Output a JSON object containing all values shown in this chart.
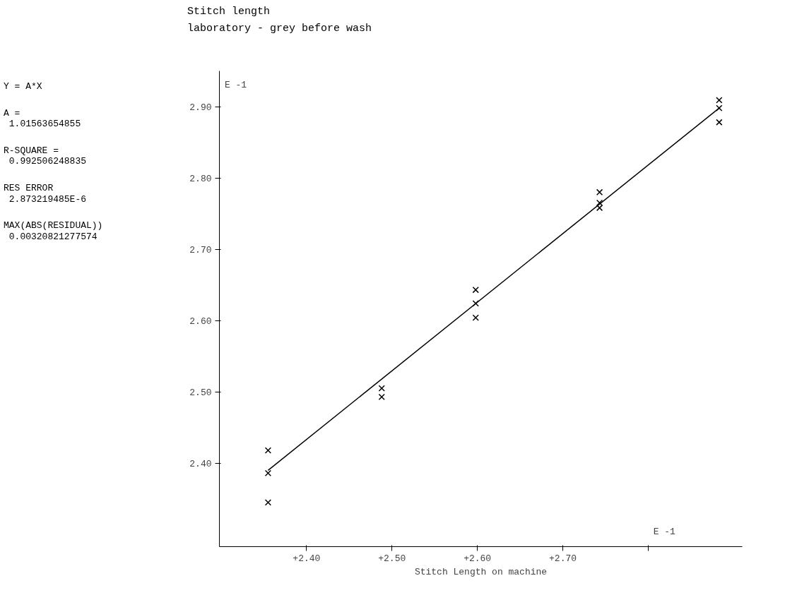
{
  "chart_data": {
    "type": "scatter",
    "title": "Stitch length",
    "subtitle": "laboratory - grey before wash",
    "xlabel": "Stitch Length on machine",
    "annotations": [
      "Y = A*X",
      "A =\n 1.01563654855",
      "R-SQUARE =\n 0.992506248835",
      "RES ERROR\n 2.873219485E-6",
      "MAX(ABS(RESIDUAL))\n 0.00320821277574",
      "E -1",
      "E -1"
    ],
    "series": [
      {
        "color": "#000000",
        "x": [
          2.355,
          2.355,
          2.355,
          2.488,
          2.488,
          2.598,
          2.598,
          2.598,
          2.743,
          2.743,
          2.743,
          2.883,
          2.883,
          2.883
        ],
        "values": [
          2.345,
          2.386,
          2.418,
          2.505,
          2.493,
          2.643,
          2.624,
          2.604,
          2.78,
          2.765,
          2.758,
          2.909,
          2.898,
          2.878
        ]
      },
      {
        "type": "line",
        "color": "#000000",
        "x": [
          2.355,
          2.883
        ],
        "values": [
          2.39,
          2.898
        ],
        "marker": "none"
      }
    ],
    "marker": "cross",
    "xlim": [
      2.298,
      2.91
    ],
    "ylim": [
      2.283,
      2.95
    ],
    "xticks": [
      {
        "value": 2.4,
        "label": "+2.40"
      },
      {
        "value": 2.5,
        "label": "+2.50"
      },
      {
        "value": 2.6,
        "label": "+2.60"
      },
      {
        "value": 2.7,
        "label": "+2.70"
      },
      {
        "value": 2.8,
        "label": null
      }
    ],
    "yticks": [
      {
        "value": 2.4,
        "label": "2.40"
      },
      {
        "value": 2.5,
        "label": "2.50"
      },
      {
        "value": 2.6,
        "label": "2.60"
      },
      {
        "value": 2.7,
        "label": "2.70"
      },
      {
        "value": 2.8,
        "label": "2.80"
      },
      {
        "value": 2.9,
        "label": "2.90"
      }
    ],
    "grid": false
  }
}
